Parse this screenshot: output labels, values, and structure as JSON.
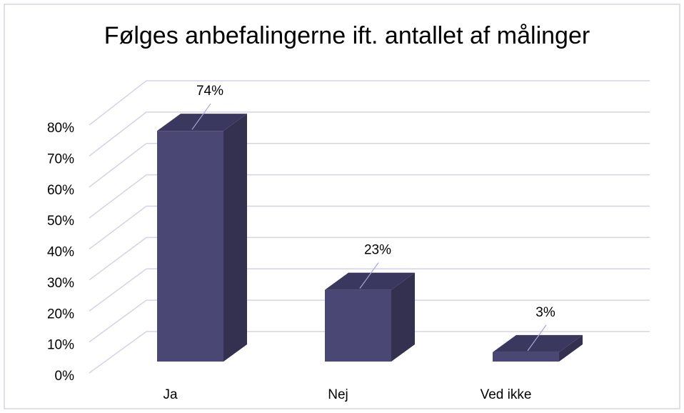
{
  "chart_data": {
    "type": "bar3d",
    "title": "Følges anbefalingerne ift. antallet af målinger",
    "categories": [
      "Ja",
      "Nej",
      "Ved ikke"
    ],
    "values": [
      74,
      23,
      3
    ],
    "value_labels": [
      "74%",
      "23%",
      "3%"
    ],
    "color": "#4b4775",
    "ylim": [
      0,
      80
    ],
    "yticks": [
      {
        "value": 0,
        "label": "0%"
      },
      {
        "value": 10,
        "label": "10%"
      },
      {
        "value": 20,
        "label": "20%"
      },
      {
        "value": 30,
        "label": "30%"
      },
      {
        "value": 40,
        "label": "40%"
      },
      {
        "value": 50,
        "label": "50%"
      },
      {
        "value": 60,
        "label": "60%"
      },
      {
        "value": 70,
        "label": "70%"
      },
      {
        "value": 80,
        "label": "80%"
      }
    ],
    "grid": true
  }
}
